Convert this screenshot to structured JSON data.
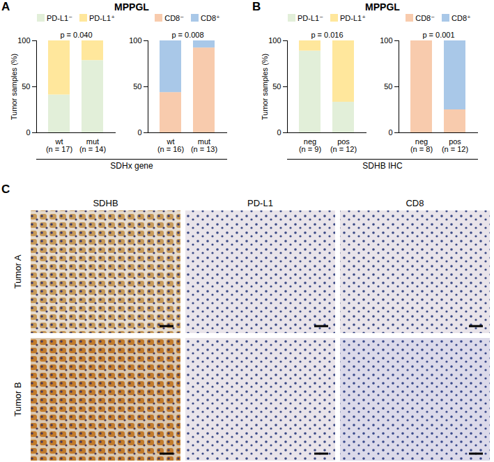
{
  "chart_data": [
    {
      "panel": "A",
      "title": "MPPGL",
      "type": "bar",
      "stacked": true,
      "ylabel": "Tumor samples (%)",
      "group_label": "SDHx gene",
      "categories": [
        "wt",
        "mut"
      ],
      "category_notes": [
        "(n = 17)",
        "(n = 14)"
      ],
      "annotation": "p = 0.040",
      "ylim": [
        0,
        100
      ],
      "yticks": [
        0,
        50,
        100
      ],
      "series": [
        {
          "name": "PD-L1⁻",
          "color": "#e2efd9",
          "values": [
            41.2,
            78.6
          ]
        },
        {
          "name": "PD-L1⁺",
          "color": "#ffe79c",
          "values": [
            58.8,
            21.4
          ]
        }
      ]
    },
    {
      "type": "bar",
      "stacked": true,
      "categories": [
        "wt",
        "mut"
      ],
      "category_notes": [
        "(n = 16)",
        "(n = 13)"
      ],
      "annotation": "p = 0.008",
      "ylim": [
        0,
        100
      ],
      "yticks": [
        0,
        50,
        100
      ],
      "series": [
        {
          "name": "CD8⁻",
          "color": "#f8cbad",
          "values": [
            43.8,
            92.3
          ]
        },
        {
          "name": "CD8⁺",
          "color": "#a9c8e8",
          "values": [
            56.2,
            7.7
          ]
        }
      ]
    },
    {
      "panel": "B",
      "title": "MPPGL",
      "type": "bar",
      "stacked": true,
      "ylabel": "Tumor samples (%)",
      "group_label": "SDHB IHC",
      "categories": [
        "neg",
        "pos"
      ],
      "category_notes": [
        "(n = 9)",
        "(n = 12)"
      ],
      "annotation": "p = 0.016",
      "ylim": [
        0,
        100
      ],
      "yticks": [
        0,
        50,
        100
      ],
      "series": [
        {
          "name": "PD-L1⁻",
          "color": "#e2efd9",
          "values": [
            88.9,
            33.3
          ]
        },
        {
          "name": "PD-L1⁺",
          "color": "#ffe79c",
          "values": [
            11.1,
            66.7
          ]
        }
      ]
    },
    {
      "type": "bar",
      "stacked": true,
      "categories": [
        "neg",
        "pos"
      ],
      "category_notes": [
        "(n = 8)",
        "(n = 12)"
      ],
      "annotation": "p = 0.001",
      "ylim": [
        0,
        100
      ],
      "yticks": [
        0,
        50,
        100
      ],
      "series": [
        {
          "name": "CD8⁻",
          "color": "#f8cbad",
          "values": [
            100,
            25
          ]
        },
        {
          "name": "CD8⁺",
          "color": "#a9c8e8",
          "values": [
            0,
            75
          ]
        }
      ]
    }
  ],
  "image_panel": {
    "panel": "C",
    "columns": [
      "SDHB",
      "PD-L1",
      "CD8"
    ],
    "rows": [
      "Tumor A",
      "Tumor B"
    ]
  }
}
